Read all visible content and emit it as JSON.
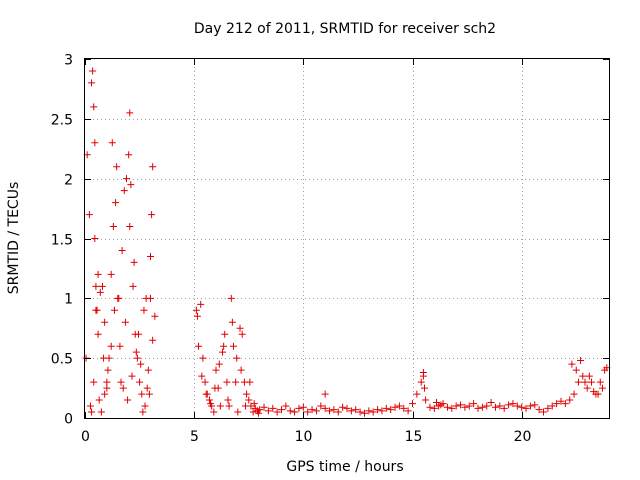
{
  "chart_data": {
    "type": "scatter",
    "title": "Day 212 of 2011, SRMTID for receiver sch2",
    "xlabel": "GPS time / hours",
    "ylabel": "SRMTID / TECUs",
    "xlim": [
      0,
      24
    ],
    "ylim": [
      0,
      3
    ],
    "xticks": [
      0,
      5,
      10,
      15,
      20
    ],
    "yticks": [
      0,
      0.5,
      1,
      1.5,
      2,
      2.5,
      3
    ],
    "xtick_labels": [
      "0",
      "5",
      "10",
      "15",
      "20"
    ],
    "ytick_labels": [
      "0",
      "0.5",
      "1",
      "1.5",
      "2",
      "2.5",
      "3"
    ],
    "grid": true,
    "legend": "none",
    "marker": "+",
    "color": "#e00000",
    "x": [
      0.05,
      0.1,
      0.2,
      0.3,
      0.35,
      0.4,
      0.45,
      0.5,
      0.55,
      0.6,
      0.7,
      0.8,
      0.9,
      1.0,
      1.1,
      1.2,
      1.3,
      1.4,
      1.5,
      1.6,
      1.7,
      1.8,
      1.9,
      2.0,
      2.05,
      2.1,
      2.2,
      2.3,
      2.4,
      2.5,
      2.6,
      2.7,
      2.8,
      2.9,
      3.0,
      3.05,
      3.1,
      3.2,
      0.25,
      0.4,
      0.45,
      0.6,
      0.75,
      0.9,
      1.05,
      1.2,
      1.35,
      1.55,
      1.75,
      1.95,
      2.15,
      2.35,
      2.55,
      2.75,
      2.95,
      3.1,
      0.3,
      0.5,
      0.65,
      0.85,
      1.0,
      1.25,
      1.45,
      1.65,
      1.85,
      2.05,
      2.25,
      2.45,
      2.65,
      2.85,
      3.0,
      5.1,
      5.2,
      5.3,
      5.4,
      5.5,
      5.6,
      5.7,
      5.8,
      5.9,
      6.0,
      6.1,
      6.2,
      6.3,
      6.4,
      6.5,
      6.6,
      6.7,
      6.8,
      6.9,
      7.0,
      7.1,
      7.2,
      7.3,
      7.4,
      7.5,
      7.6,
      7.7,
      7.8,
      7.9,
      8.0,
      5.15,
      5.35,
      5.55,
      5.75,
      5.95,
      6.15,
      6.35,
      6.55,
      6.75,
      6.95,
      7.15,
      7.35,
      7.55,
      7.75,
      7.95,
      8.2,
      8.4,
      8.6,
      8.8,
      9.0,
      9.2,
      9.4,
      9.6,
      9.8,
      10.0,
      10.2,
      10.4,
      10.6,
      10.8,
      11.0,
      11.2,
      11.4,
      11.6,
      11.8,
      12.0,
      12.2,
      12.4,
      12.6,
      12.8,
      13.0,
      13.2,
      13.4,
      13.6,
      13.8,
      14.0,
      14.2,
      14.4,
      14.6,
      14.8,
      15.0,
      15.2,
      15.4,
      15.5,
      15.6,
      15.8,
      16.0,
      16.2,
      16.4,
      16.6,
      16.8,
      17.0,
      17.2,
      17.4,
      17.6,
      17.8,
      18.0,
      18.2,
      18.4,
      18.6,
      18.8,
      19.0,
      19.2,
      19.4,
      19.6,
      19.8,
      20.0,
      20.2,
      20.4,
      20.6,
      20.8,
      21.0,
      21.2,
      21.4,
      21.6,
      21.8,
      22.0,
      22.2,
      22.4,
      22.6,
      22.8,
      23.0,
      23.2,
      23.4,
      23.6,
      23.8,
      11.0,
      15.5,
      15.55,
      16.1,
      16.3,
      22.3,
      22.5,
      22.7,
      22.9,
      23.1,
      23.3,
      23.5,
      23.7,
      23.9
    ],
    "y": [
      0.5,
      2.2,
      1.7,
      2.8,
      2.9,
      2.6,
      2.3,
      1.1,
      0.9,
      0.7,
      1.05,
      1.1,
      0.8,
      0.3,
      0.5,
      1.2,
      1.6,
      1.8,
      1.0,
      0.6,
      1.4,
      1.9,
      2.0,
      2.2,
      2.55,
      1.95,
      1.1,
      0.7,
      0.5,
      0.3,
      0.2,
      0.9,
      1.0,
      0.4,
      1.35,
      1.7,
      2.1,
      0.85,
      0.1,
      0.3,
      1.5,
      1.2,
      0.05,
      0.2,
      0.4,
      0.6,
      0.9,
      1.0,
      0.25,
      0.15,
      0.35,
      0.55,
      0.45,
      0.1,
      0.2,
      0.65,
      0.05,
      0.9,
      0.15,
      0.5,
      0.25,
      2.3,
      2.1,
      0.3,
      0.8,
      1.6,
      1.3,
      0.7,
      0.05,
      0.25,
      1.0,
      0.9,
      0.6,
      0.95,
      0.5,
      0.3,
      0.2,
      0.15,
      0.1,
      0.05,
      0.4,
      0.25,
      0.1,
      0.55,
      0.7,
      0.3,
      0.1,
      1.0,
      0.6,
      0.3,
      0.05,
      0.75,
      0.7,
      0.3,
      0.2,
      0.15,
      0.1,
      0.05,
      0.08,
      0.06,
      0.07,
      0.85,
      0.35,
      0.2,
      0.12,
      0.25,
      0.45,
      0.6,
      0.15,
      0.8,
      0.5,
      0.4,
      0.1,
      0.3,
      0.12,
      0.04,
      0.09,
      0.06,
      0.08,
      0.05,
      0.07,
      0.1,
      0.06,
      0.05,
      0.08,
      0.09,
      0.05,
      0.07,
      0.06,
      0.1,
      0.08,
      0.06,
      0.07,
      0.05,
      0.09,
      0.08,
      0.06,
      0.07,
      0.05,
      0.04,
      0.06,
      0.05,
      0.07,
      0.06,
      0.08,
      0.07,
      0.09,
      0.1,
      0.08,
      0.06,
      0.12,
      0.2,
      0.3,
      0.35,
      0.15,
      0.09,
      0.08,
      0.1,
      0.12,
      0.09,
      0.08,
      0.1,
      0.11,
      0.09,
      0.1,
      0.12,
      0.08,
      0.09,
      0.1,
      0.13,
      0.09,
      0.1,
      0.08,
      0.11,
      0.12,
      0.1,
      0.09,
      0.08,
      0.1,
      0.11,
      0.07,
      0.05,
      0.08,
      0.1,
      0.12,
      0.14,
      0.12,
      0.15,
      0.2,
      0.3,
      0.35,
      0.25,
      0.3,
      0.2,
      0.3,
      0.4,
      0.2,
      0.38,
      0.25,
      0.13,
      0.11,
      0.45,
      0.4,
      0.48,
      0.3,
      0.35,
      0.22,
      0.2,
      0.25,
      0.42
    ]
  }
}
